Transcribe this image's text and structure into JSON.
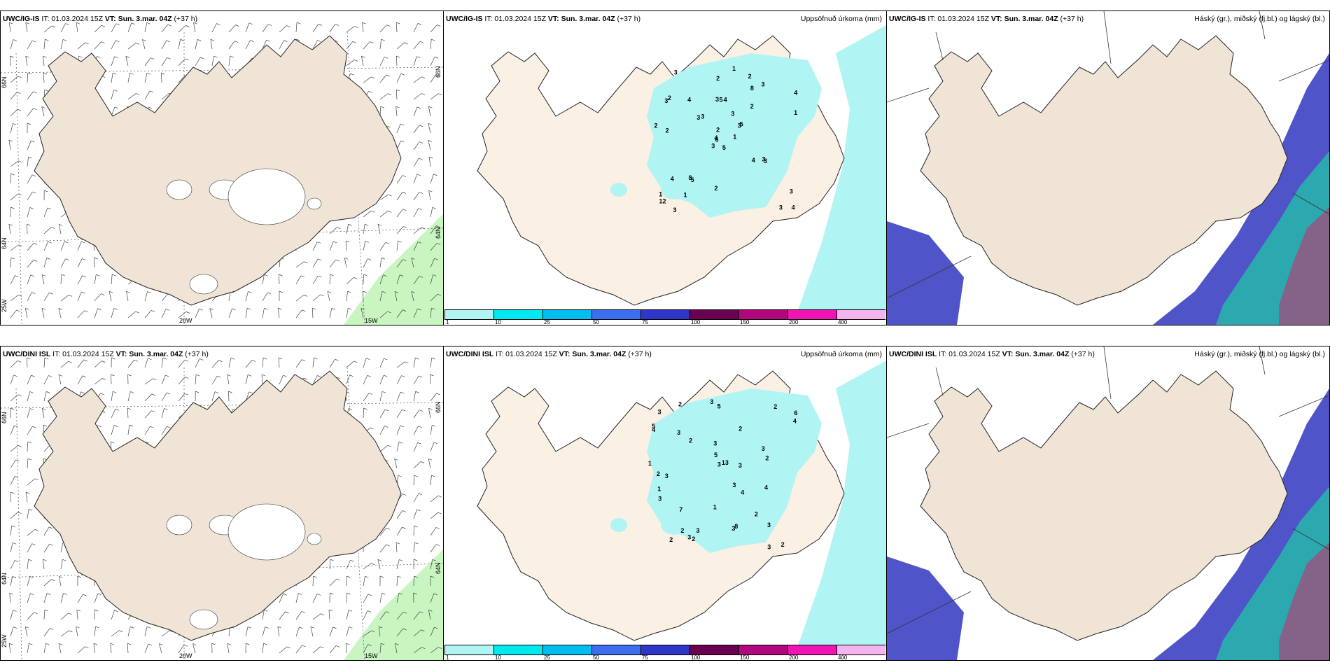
{
  "rows": [
    {
      "model": "UWC/IG-IS",
      "panels": [
        {
          "kind": "wind",
          "model": "UWC/IG-IS",
          "it_label": "IT:",
          "it_value": "01.03.2024 15Z",
          "vt_label": "VT:",
          "vt_value": "Sun. 3.mar. 04Z",
          "lead": "(+37 h)",
          "title": ""
        },
        {
          "kind": "precip",
          "model": "UWC/IG-IS",
          "it_label": "IT:",
          "it_value": "01.03.2024 15Z",
          "vt_label": "VT:",
          "vt_value": "Sun. 3.mar. 04Z",
          "lead": "(+37 h)",
          "title": "Uppsöfnuð úrkoma (mm)"
        },
        {
          "kind": "cloud",
          "model": "UWC/IG-IS",
          "it_label": "IT:",
          "it_value": "01.03.2024 15Z",
          "vt_label": "VT:",
          "vt_value": "Sun. 3.mar. 04Z",
          "lead": "(+37 h)",
          "title": "Háský (gr.), miðský (fj.bl.) og lágský (bl.)"
        }
      ]
    },
    {
      "model": "UWC/DINI ISL",
      "panels": [
        {
          "kind": "wind",
          "model": "UWC/DINI ISL",
          "it_label": "IT:",
          "it_value": "01.03.2024 15Z",
          "vt_label": "VT:",
          "vt_value": "Sun. 3.mar. 04Z",
          "lead": "(+37 h)",
          "title": ""
        },
        {
          "kind": "precip",
          "model": "UWC/DINI ISL",
          "it_label": "IT:",
          "it_value": "01.03.2024 15Z",
          "vt_label": "VT:",
          "vt_value": "Sun. 3.mar. 04Z",
          "lead": "(+37 h)",
          "title": "Uppsöfnuð úrkoma (mm)"
        },
        {
          "kind": "cloud",
          "model": "UWC/DINI ISL",
          "it_label": "IT:",
          "it_value": "01.03.2024 15Z",
          "vt_label": "VT:",
          "vt_value": "Sun. 3.mar. 04Z",
          "lead": "(+37 h)",
          "title": "Háský (gr.), miðský (fj.bl.) og lágský (bl.)"
        }
      ]
    }
  ],
  "axis_labels": {
    "lon_a": "20W",
    "lon_b": "15W",
    "lat_a": "66N",
    "lat_b": "64N",
    "corner": "25W"
  },
  "colorbar": {
    "bins": [
      {
        "label": "1",
        "color": "#b0f4f4"
      },
      {
        "label": "10",
        "color": "#00e8f0"
      },
      {
        "label": "25",
        "color": "#00bff0"
      },
      {
        "label": "50",
        "color": "#3b6ff0"
      },
      {
        "label": "75",
        "color": "#3036c8"
      },
      {
        "label": "100",
        "color": "#6b0050"
      },
      {
        "label": "150",
        "color": "#b0067e"
      },
      {
        "label": "200",
        "color": "#f014b4"
      },
      {
        "label": "400",
        "color": "#f4b4f0"
      }
    ]
  },
  "precip_values_top": [
    "5",
    "3",
    "6",
    "1",
    "3",
    "5",
    "2",
    "4",
    "8",
    "1",
    "3",
    "4",
    "2",
    "4",
    "3",
    "2",
    "3",
    "3",
    "3",
    "4",
    "3",
    "12",
    "1",
    "5",
    "5",
    "3",
    "2",
    "2",
    "2",
    "4",
    "1",
    "4",
    "2",
    "2",
    "4",
    "3",
    "8",
    "3",
    "3",
    "3",
    "1",
    "3"
  ],
  "precip_values_bottom": [
    "1",
    "5",
    "3",
    "6",
    "5",
    "2",
    "3",
    "2",
    "3",
    "2",
    "13",
    "4",
    "3",
    "4",
    "3",
    "7",
    "8",
    "2",
    "3",
    "1",
    "2",
    "3",
    "4",
    "5",
    "2",
    "3",
    "4",
    "2",
    "2",
    "3",
    "1",
    "3",
    "3",
    "2",
    "3",
    "3",
    "2",
    "3",
    "3",
    "2"
  ],
  "colors": {
    "land": "#f0e4d6",
    "land_pale": "#fbf0e4",
    "sea": "#ffffff",
    "precip_light": "#b0f4f4",
    "wind_green": "#c8f5c0",
    "cloud_low": "#4f55c8",
    "cloud_mid": "#1fc6a6",
    "cloud_high": "#c2366e"
  }
}
